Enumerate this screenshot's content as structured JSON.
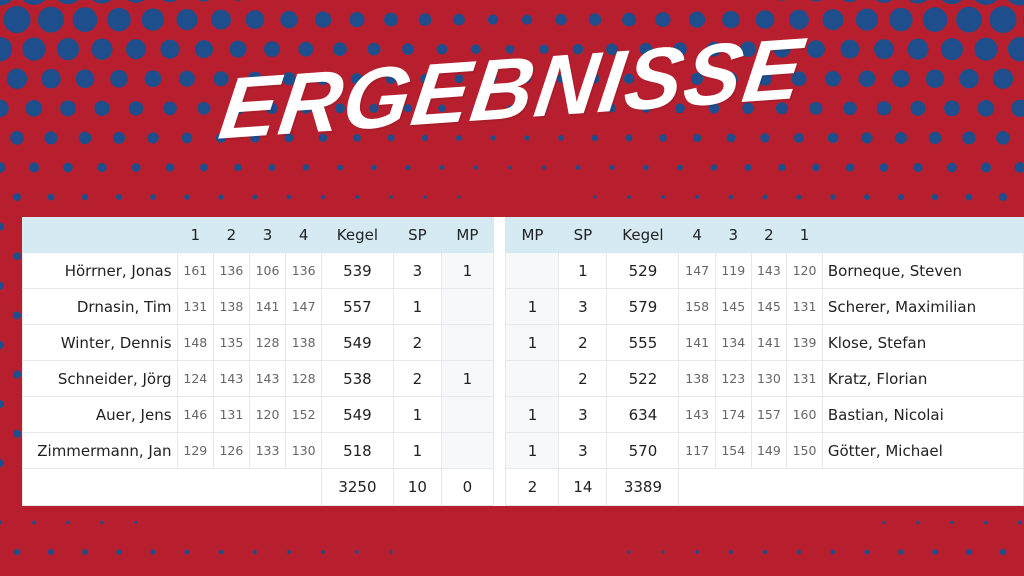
{
  "title": "ERGEBNISSE",
  "colors": {
    "background": "#b81f2e",
    "dots": "#1f4e8c",
    "header": "#d6eaf4"
  },
  "header": {
    "left": [
      "1",
      "2",
      "3",
      "4",
      "Kegel",
      "SP",
      "MP"
    ],
    "right": [
      "MP",
      "SP",
      "Kegel",
      "4",
      "3",
      "2",
      "1"
    ]
  },
  "rows": [
    {
      "home": {
        "name": "Hörrner, Jonas",
        "sets": [
          "161",
          "136",
          "106",
          "136"
        ],
        "kegel": "539",
        "sp": "3",
        "mp": "1"
      },
      "away": {
        "name": "Borneque, Steven",
        "sets": [
          "120",
          "143",
          "119",
          "147"
        ],
        "kegel": "529",
        "sp": "1",
        "mp": ""
      }
    },
    {
      "home": {
        "name": "Drnasin, Tim",
        "sets": [
          "131",
          "138",
          "141",
          "147"
        ],
        "kegel": "557",
        "sp": "1",
        "mp": ""
      },
      "away": {
        "name": "Scherer, Maximilian",
        "sets": [
          "131",
          "145",
          "145",
          "158"
        ],
        "kegel": "579",
        "sp": "3",
        "mp": "1"
      }
    },
    {
      "home": {
        "name": "Winter, Dennis",
        "sets": [
          "148",
          "135",
          "128",
          "138"
        ],
        "kegel": "549",
        "sp": "2",
        "mp": ""
      },
      "away": {
        "name": "Klose, Stefan",
        "sets": [
          "139",
          "141",
          "134",
          "141"
        ],
        "kegel": "555",
        "sp": "2",
        "mp": "1"
      }
    },
    {
      "home": {
        "name": "Schneider, Jörg",
        "sets": [
          "124",
          "143",
          "143",
          "128"
        ],
        "kegel": "538",
        "sp": "2",
        "mp": "1"
      },
      "away": {
        "name": "Kratz, Florian",
        "sets": [
          "131",
          "130",
          "123",
          "138"
        ],
        "kegel": "522",
        "sp": "2",
        "mp": ""
      }
    },
    {
      "home": {
        "name": "Auer, Jens",
        "sets": [
          "146",
          "131",
          "120",
          "152"
        ],
        "kegel": "549",
        "sp": "1",
        "mp": ""
      },
      "away": {
        "name": "Bastian, Nicolai",
        "sets": [
          "160",
          "157",
          "174",
          "143"
        ],
        "kegel": "634",
        "sp": "3",
        "mp": "1"
      }
    },
    {
      "home": {
        "name": "Zimmermann, Jan",
        "sets": [
          "129",
          "126",
          "133",
          "130"
        ],
        "kegel": "518",
        "sp": "1",
        "mp": ""
      },
      "away": {
        "name": "Götter, Michael",
        "sets": [
          "150",
          "149",
          "154",
          "117"
        ],
        "kegel": "570",
        "sp": "3",
        "mp": "1"
      }
    }
  ],
  "totals": {
    "home": {
      "kegel": "3250",
      "sp": "10",
      "mp": "0"
    },
    "away": {
      "mp": "2",
      "sp": "14",
      "kegel": "3389"
    }
  }
}
